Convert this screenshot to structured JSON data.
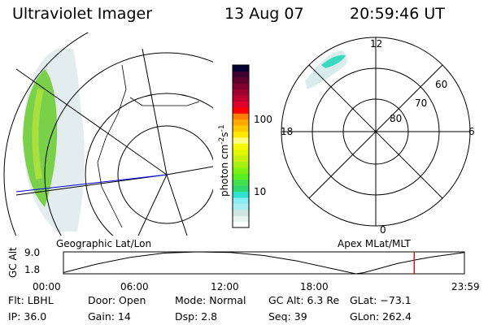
{
  "header": {
    "instrument": "Ultraviolet Imager",
    "date": "13 Aug 07",
    "time": "20:59:46 UT"
  },
  "colorbar": {
    "label": "photon cm",
    "exp1": "-2",
    "unit2": "s",
    "exp2": "-1",
    "ticks": [
      "100",
      "10"
    ],
    "colors": [
      "#ffffff",
      "#e8f4ee",
      "#d0e4e0",
      "#a8eef0",
      "#88ecf4",
      "#2ee0d0",
      "#30d870",
      "#40e050",
      "#58f020",
      "#80f010",
      "#a8f010",
      "#c8f010",
      "#e0f800",
      "#f8f800",
      "#ffff80",
      "#ffe800",
      "#ffc800",
      "#ffa800",
      "#ff8000",
      "#ff0000",
      "#e00030",
      "#c00030",
      "#a00030",
      "#800030",
      "#600030",
      "#400030",
      "#000030"
    ]
  },
  "polar_plot": {
    "mlt_labels": [
      "12",
      "18",
      "6",
      "0"
    ],
    "lat_labels": [
      "80",
      "70",
      "60"
    ],
    "caption": "Apex MLat/MLT"
  },
  "map": {
    "caption": "Geographic Lat/Lon"
  },
  "altitude_plot": {
    "ylabel": "GC Alt",
    "yticks": [
      "9.0",
      "1.8"
    ],
    "xticks": [
      "00:00",
      "06:00",
      "12:00",
      "18:00",
      "23:59"
    ],
    "current_time_marker_color": "#ff0000",
    "current_time": "20:59:46"
  },
  "chart_data": {
    "type": "line",
    "ylabel": "GC Alt",
    "ylim": [
      1.8,
      9.0
    ],
    "xticks": [
      "00:00",
      "06:00",
      "12:00",
      "18:00",
      "23:59"
    ],
    "x": [
      0,
      2,
      4,
      6,
      8,
      10,
      12,
      14,
      16,
      17.5,
      18,
      20,
      21,
      22,
      24
    ],
    "values": [
      2.2,
      5.0,
      7.2,
      8.6,
      9.0,
      8.8,
      7.8,
      6.0,
      3.6,
      1.8,
      2.2,
      5.2,
      6.3,
      7.3,
      8.8
    ]
  },
  "info": [
    [
      "Flt: LBHL",
      "Door: Open",
      "Mode: Normal",
      "GC Alt: 6.3 Re",
      "GLat: −73.1"
    ],
    [
      "IP: 36.0",
      "Gain: 14",
      "Dsp:    2.8",
      "Seq: 39",
      "GLon: 262.4"
    ]
  ]
}
